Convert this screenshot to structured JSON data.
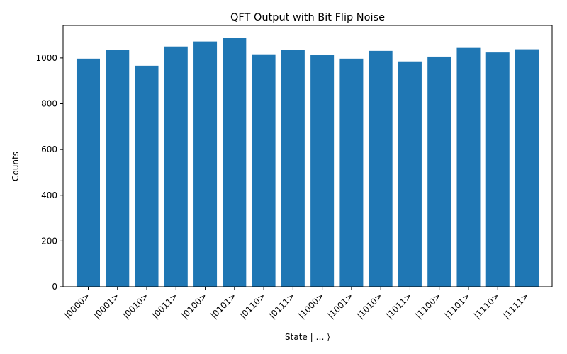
{
  "chart_data": {
    "type": "bar",
    "title": "QFT Output with Bit Flip Noise",
    "xlabel": "State | … ⟩",
    "ylabel": "Counts",
    "categories": [
      "|0000>",
      "|0001>",
      "|0010>",
      "|0011>",
      "|0100>",
      "|0101>",
      "|0110>",
      "|0111>",
      "|1000>",
      "|1001>",
      "|1010>",
      "|1011>",
      "|1100>",
      "|1101>",
      "|1110>",
      "|1111>"
    ],
    "values": [
      997,
      1035,
      966,
      1050,
      1072,
      1088,
      1016,
      1035,
      1012,
      997,
      1031,
      985,
      1006,
      1044,
      1024,
      1038
    ],
    "yticks": [
      0,
      200,
      400,
      600,
      800,
      1000
    ],
    "ylim": [
      0,
      1142
    ],
    "bar_color": "#1f77b4",
    "grid": false,
    "legend": "none"
  }
}
